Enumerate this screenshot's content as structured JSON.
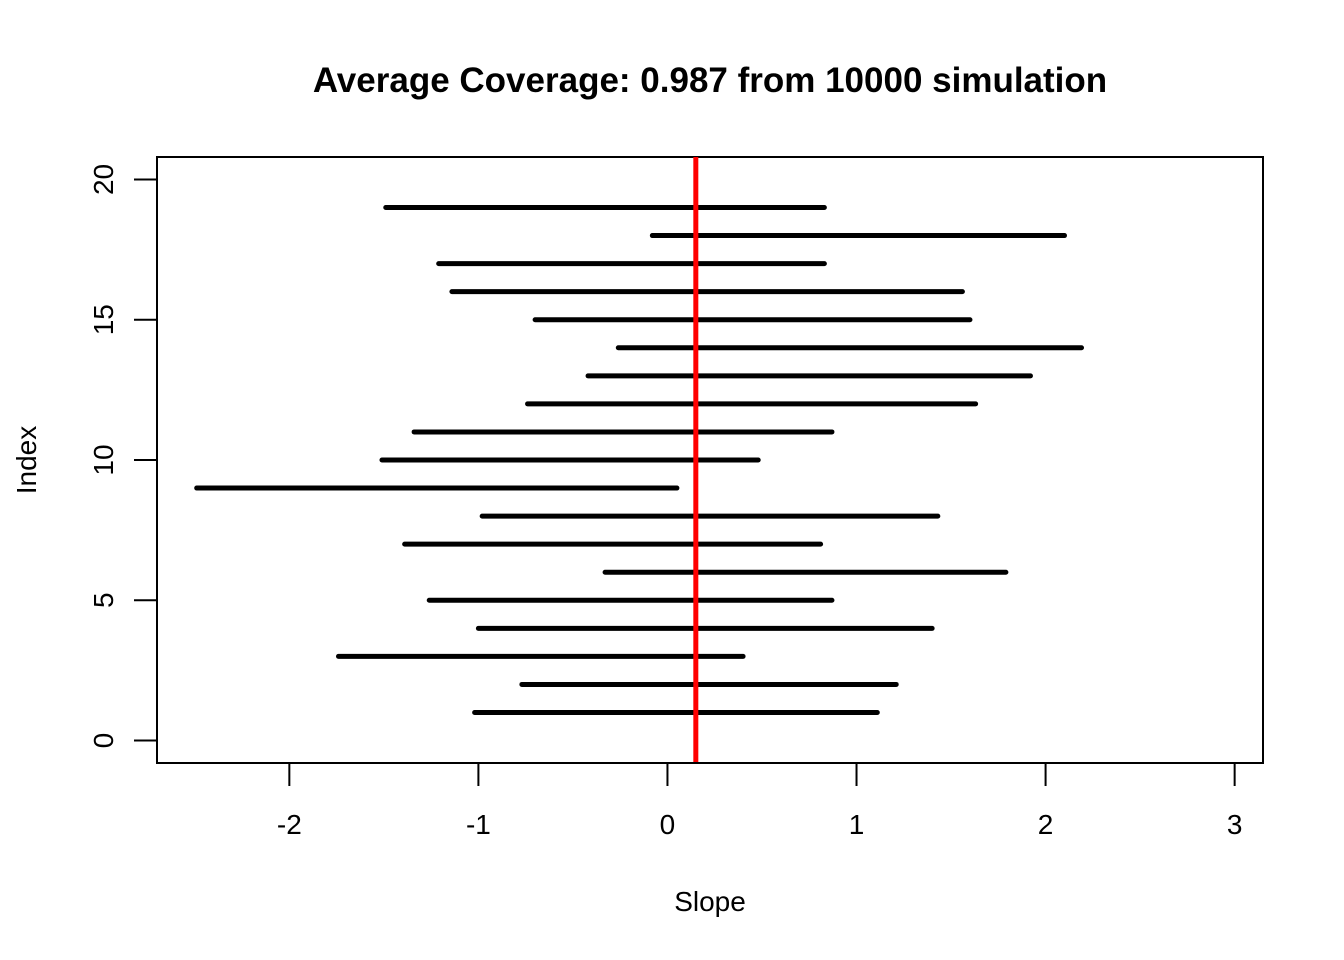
{
  "chart_data": {
    "type": "interval",
    "title": "Average Coverage: 0.987 from 10000 simulation",
    "xlabel": "Slope",
    "ylabel": "Index",
    "xlim": [
      -2.7,
      3.15
    ],
    "ylim": [
      -0.8,
      20.8
    ],
    "x_ticks": [
      -2,
      -1,
      0,
      1,
      2,
      3
    ],
    "y_ticks": [
      0,
      5,
      10,
      15,
      20
    ],
    "reference_line": {
      "x": 0.15,
      "color": "#ff0000"
    },
    "interval_color": "#000000",
    "intervals": [
      {
        "index": 1,
        "lower": -1.02,
        "upper": 1.11
      },
      {
        "index": 2,
        "lower": -0.77,
        "upper": 1.21
      },
      {
        "index": 3,
        "lower": -1.74,
        "upper": 0.4
      },
      {
        "index": 4,
        "lower": -1.0,
        "upper": 1.4
      },
      {
        "index": 5,
        "lower": -1.26,
        "upper": 0.87
      },
      {
        "index": 6,
        "lower": -0.33,
        "upper": 1.79
      },
      {
        "index": 7,
        "lower": -1.39,
        "upper": 0.81
      },
      {
        "index": 8,
        "lower": -0.98,
        "upper": 1.43
      },
      {
        "index": 9,
        "lower": -2.49,
        "upper": 0.05
      },
      {
        "index": 10,
        "lower": -1.51,
        "upper": 0.48
      },
      {
        "index": 11,
        "lower": -1.34,
        "upper": 0.87
      },
      {
        "index": 12,
        "lower": -0.74,
        "upper": 1.63
      },
      {
        "index": 13,
        "lower": -0.42,
        "upper": 1.92
      },
      {
        "index": 14,
        "lower": -0.26,
        "upper": 2.19
      },
      {
        "index": 15,
        "lower": -0.7,
        "upper": 1.6
      },
      {
        "index": 16,
        "lower": -1.14,
        "upper": 1.56
      },
      {
        "index": 17,
        "lower": -1.21,
        "upper": 0.83
      },
      {
        "index": 18,
        "lower": -0.08,
        "upper": 2.1
      },
      {
        "index": 19,
        "lower": -1.49,
        "upper": 0.83
      }
    ]
  }
}
